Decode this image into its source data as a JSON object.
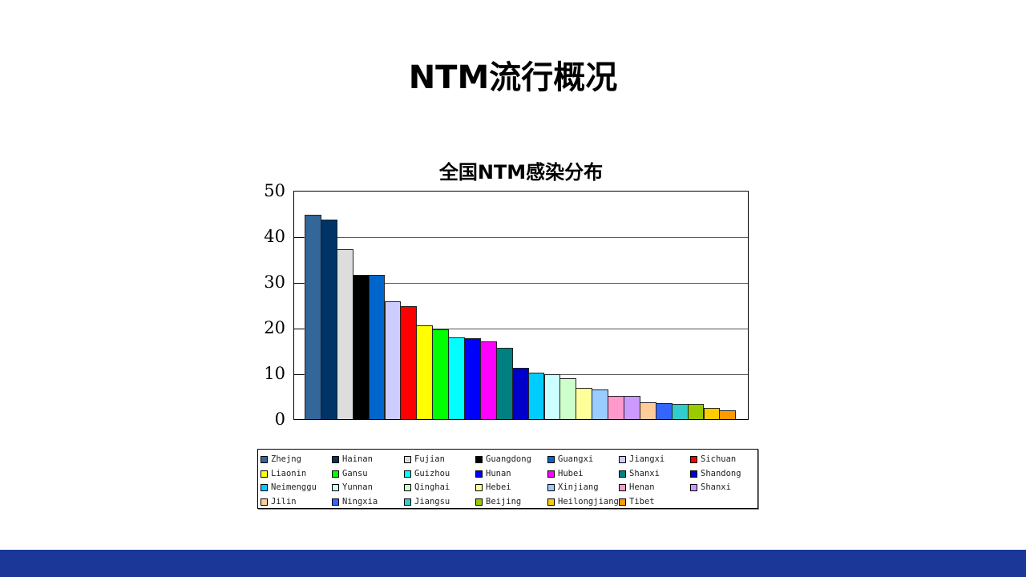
{
  "slide": {
    "title": "NTM流行概况",
    "footer_color": "#1b3797"
  },
  "chart_data": {
    "type": "bar",
    "title": "全国NTM感染分布",
    "xlabel": "",
    "ylabel": "",
    "ylim": [
      0,
      50
    ],
    "yticks": [
      "0",
      "10",
      "20",
      "30",
      "40",
      "50"
    ],
    "grid": true,
    "legend_position": "bottom",
    "categories": [
      "Zhejng",
      "Hainan",
      "Fujian",
      "Guangdong",
      "Guangxi",
      "Jiangxi",
      "Sichuan",
      "Liaonin",
      "Gansu",
      "Guizhou",
      "Hunan",
      "Hubei",
      "Shanxi",
      "Shandong",
      "Neimenggu",
      "Yunnan",
      "Qinghai",
      "Hebei",
      "Xinjiang",
      "Henan",
      "Shanxi",
      "Jilin",
      "Ningxia",
      "Jiangsu",
      "Beijing",
      "Heilongjiang",
      "Tibet"
    ],
    "values": [
      44.7,
      43.6,
      37.2,
      31.6,
      31.6,
      25.8,
      24.8,
      20.6,
      19.7,
      17.9,
      17.7,
      17.0,
      15.6,
      11.2,
      10.1,
      9.8,
      9.0,
      6.9,
      6.5,
      5.1,
      5.1,
      3.7,
      3.5,
      3.3,
      3.3,
      2.4,
      1.9
    ],
    "colors": [
      "#336699",
      "#003366",
      "#dddddd",
      "#000000",
      "#0066cc",
      "#ccccff",
      "#ff0000",
      "#ffff00",
      "#00ff00",
      "#00ffff",
      "#0000ff",
      "#ff00ff",
      "#008080",
      "#0000cc",
      "#00ccff",
      "#ccffff",
      "#ccffcc",
      "#ffff99",
      "#99ccff",
      "#ff99cc",
      "#cc99ff",
      "#ffcc99",
      "#3366ff",
      "#33cccc",
      "#99cc00",
      "#ffcc00",
      "#ff9900"
    ]
  }
}
